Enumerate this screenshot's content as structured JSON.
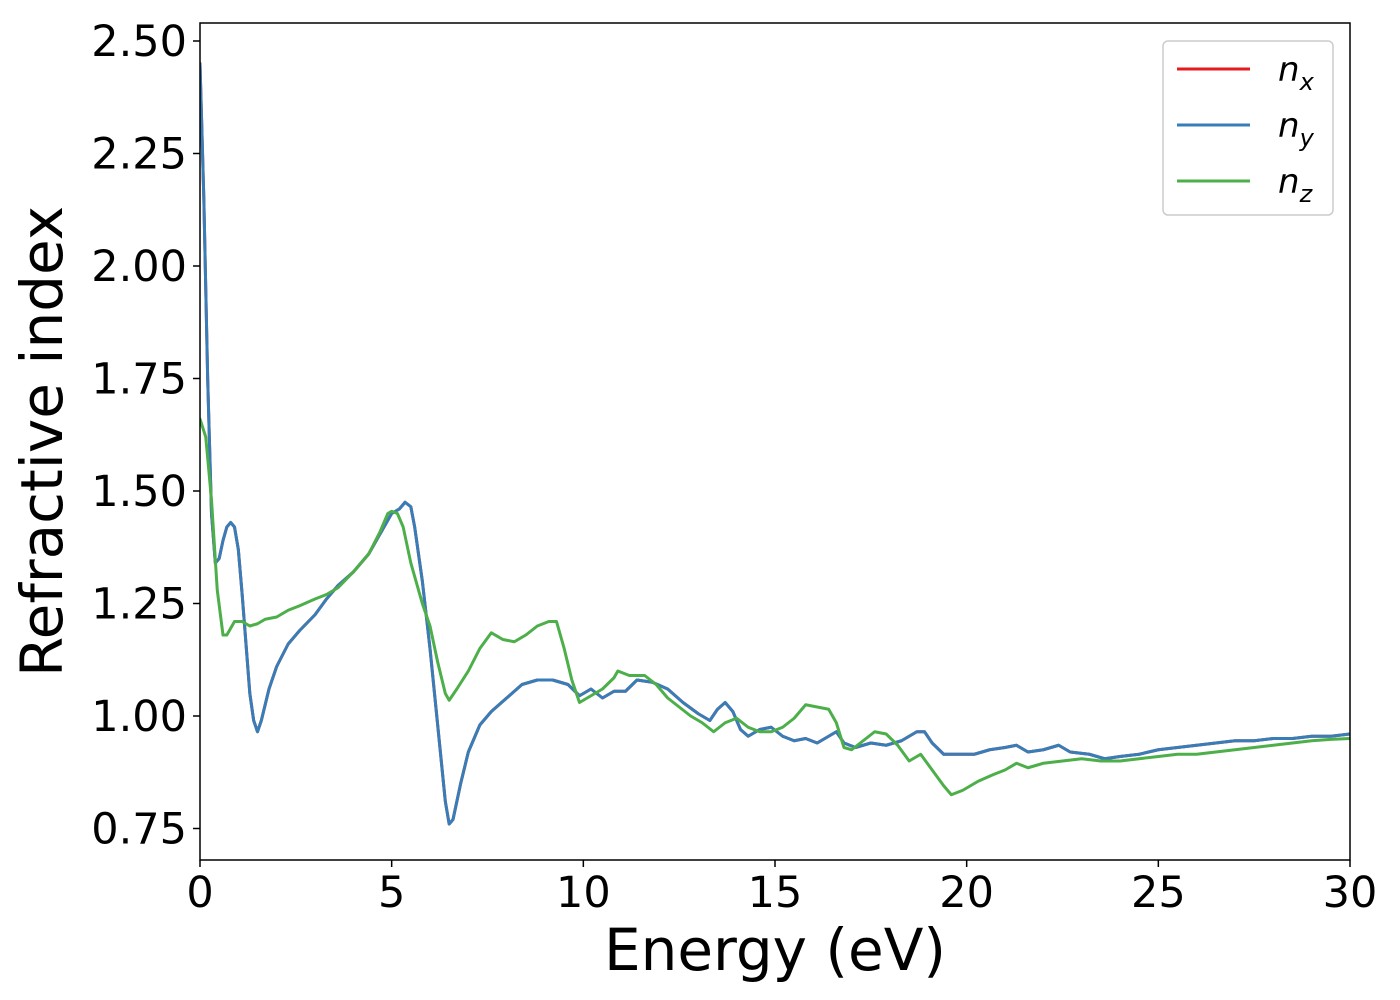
{
  "chart_data": {
    "type": "line",
    "xlabel": "Energy (eV)",
    "ylabel": "Refractive index",
    "xlim": [
      0,
      30
    ],
    "ylim": [
      0.68,
      2.54
    ],
    "grid": false,
    "legend_position": "top-right",
    "x_ticks": [
      0,
      5,
      10,
      15,
      20,
      25,
      30
    ],
    "x_tick_labels": [
      "0",
      "5",
      "10",
      "15",
      "20",
      "25",
      "30"
    ],
    "y_ticks": [
      0.75,
      1.0,
      1.25,
      1.5,
      1.75,
      2.0,
      2.25,
      2.5
    ],
    "y_tick_labels": [
      "0.75",
      "1.00",
      "1.25",
      "1.50",
      "1.75",
      "2.00",
      "2.25",
      "2.50"
    ],
    "series": [
      {
        "name": "n_x",
        "legend_base": "n",
        "legend_sub": "x",
        "color": "#e41a1c",
        "points": [
          [
            0.0,
            2.45
          ],
          [
            0.1,
            2.15
          ],
          [
            0.2,
            1.75
          ],
          [
            0.3,
            1.45
          ],
          [
            0.4,
            1.34
          ],
          [
            0.5,
            1.35
          ],
          [
            0.6,
            1.39
          ],
          [
            0.7,
            1.42
          ],
          [
            0.8,
            1.43
          ],
          [
            0.9,
            1.42
          ],
          [
            1.0,
            1.37
          ],
          [
            1.1,
            1.27
          ],
          [
            1.2,
            1.16
          ],
          [
            1.3,
            1.05
          ],
          [
            1.4,
            0.99
          ],
          [
            1.5,
            0.965
          ],
          [
            1.6,
            0.99
          ],
          [
            1.8,
            1.06
          ],
          [
            2.0,
            1.11
          ],
          [
            2.3,
            1.16
          ],
          [
            2.6,
            1.19
          ],
          [
            3.0,
            1.225
          ],
          [
            3.3,
            1.26
          ],
          [
            3.6,
            1.29
          ],
          [
            4.0,
            1.32
          ],
          [
            4.4,
            1.36
          ],
          [
            4.8,
            1.42
          ],
          [
            5.0,
            1.45
          ],
          [
            5.2,
            1.46
          ],
          [
            5.35,
            1.475
          ],
          [
            5.5,
            1.465
          ],
          [
            5.6,
            1.42
          ],
          [
            5.8,
            1.3
          ],
          [
            6.0,
            1.15
          ],
          [
            6.2,
            0.98
          ],
          [
            6.4,
            0.81
          ],
          [
            6.5,
            0.76
          ],
          [
            6.6,
            0.77
          ],
          [
            6.8,
            0.85
          ],
          [
            7.0,
            0.92
          ],
          [
            7.3,
            0.98
          ],
          [
            7.6,
            1.01
          ],
          [
            8.0,
            1.04
          ],
          [
            8.4,
            1.07
          ],
          [
            8.8,
            1.08
          ],
          [
            9.2,
            1.08
          ],
          [
            9.6,
            1.07
          ],
          [
            9.9,
            1.045
          ],
          [
            10.2,
            1.06
          ],
          [
            10.5,
            1.04
          ],
          [
            10.8,
            1.055
          ],
          [
            11.1,
            1.055
          ],
          [
            11.4,
            1.08
          ],
          [
            11.8,
            1.075
          ],
          [
            12.2,
            1.06
          ],
          [
            12.6,
            1.03
          ],
          [
            13.0,
            1.005
          ],
          [
            13.3,
            0.99
          ],
          [
            13.5,
            1.015
          ],
          [
            13.7,
            1.03
          ],
          [
            13.9,
            1.01
          ],
          [
            14.1,
            0.97
          ],
          [
            14.3,
            0.955
          ],
          [
            14.6,
            0.97
          ],
          [
            14.9,
            0.975
          ],
          [
            15.2,
            0.955
          ],
          [
            15.5,
            0.945
          ],
          [
            15.8,
            0.95
          ],
          [
            16.1,
            0.94
          ],
          [
            16.4,
            0.955
          ],
          [
            16.6,
            0.965
          ],
          [
            16.8,
            0.94
          ],
          [
            17.1,
            0.93
          ],
          [
            17.5,
            0.94
          ],
          [
            17.9,
            0.935
          ],
          [
            18.3,
            0.945
          ],
          [
            18.7,
            0.965
          ],
          [
            18.9,
            0.965
          ],
          [
            19.1,
            0.94
          ],
          [
            19.4,
            0.915
          ],
          [
            19.8,
            0.915
          ],
          [
            20.2,
            0.915
          ],
          [
            20.6,
            0.925
          ],
          [
            21.0,
            0.93
          ],
          [
            21.3,
            0.935
          ],
          [
            21.6,
            0.92
          ],
          [
            22.0,
            0.925
          ],
          [
            22.4,
            0.935
          ],
          [
            22.7,
            0.92
          ],
          [
            23.2,
            0.915
          ],
          [
            23.6,
            0.905
          ],
          [
            24.0,
            0.91
          ],
          [
            24.5,
            0.915
          ],
          [
            25.0,
            0.925
          ],
          [
            25.5,
            0.93
          ],
          [
            26.0,
            0.935
          ],
          [
            26.5,
            0.94
          ],
          [
            27.0,
            0.945
          ],
          [
            27.5,
            0.945
          ],
          [
            28.0,
            0.95
          ],
          [
            28.5,
            0.95
          ],
          [
            29.0,
            0.955
          ],
          [
            29.5,
            0.955
          ],
          [
            30.0,
            0.96
          ]
        ]
      },
      {
        "name": "n_y",
        "legend_base": "n",
        "legend_sub": "y",
        "color": "#377eb8",
        "points": [
          [
            0.0,
            2.45
          ],
          [
            0.1,
            2.15
          ],
          [
            0.2,
            1.75
          ],
          [
            0.3,
            1.45
          ],
          [
            0.4,
            1.34
          ],
          [
            0.5,
            1.35
          ],
          [
            0.6,
            1.39
          ],
          [
            0.7,
            1.42
          ],
          [
            0.8,
            1.43
          ],
          [
            0.9,
            1.42
          ],
          [
            1.0,
            1.37
          ],
          [
            1.1,
            1.27
          ],
          [
            1.2,
            1.16
          ],
          [
            1.3,
            1.05
          ],
          [
            1.4,
            0.99
          ],
          [
            1.5,
            0.965
          ],
          [
            1.6,
            0.99
          ],
          [
            1.8,
            1.06
          ],
          [
            2.0,
            1.11
          ],
          [
            2.3,
            1.16
          ],
          [
            2.6,
            1.19
          ],
          [
            3.0,
            1.225
          ],
          [
            3.3,
            1.26
          ],
          [
            3.6,
            1.29
          ],
          [
            4.0,
            1.32
          ],
          [
            4.4,
            1.36
          ],
          [
            4.8,
            1.42
          ],
          [
            5.0,
            1.45
          ],
          [
            5.2,
            1.46
          ],
          [
            5.35,
            1.475
          ],
          [
            5.5,
            1.465
          ],
          [
            5.6,
            1.42
          ],
          [
            5.8,
            1.3
          ],
          [
            6.0,
            1.15
          ],
          [
            6.2,
            0.98
          ],
          [
            6.4,
            0.81
          ],
          [
            6.5,
            0.76
          ],
          [
            6.6,
            0.77
          ],
          [
            6.8,
            0.85
          ],
          [
            7.0,
            0.92
          ],
          [
            7.3,
            0.98
          ],
          [
            7.6,
            1.01
          ],
          [
            8.0,
            1.04
          ],
          [
            8.4,
            1.07
          ],
          [
            8.8,
            1.08
          ],
          [
            9.2,
            1.08
          ],
          [
            9.6,
            1.07
          ],
          [
            9.9,
            1.045
          ],
          [
            10.2,
            1.06
          ],
          [
            10.5,
            1.04
          ],
          [
            10.8,
            1.055
          ],
          [
            11.1,
            1.055
          ],
          [
            11.4,
            1.08
          ],
          [
            11.8,
            1.075
          ],
          [
            12.2,
            1.06
          ],
          [
            12.6,
            1.03
          ],
          [
            13.0,
            1.005
          ],
          [
            13.3,
            0.99
          ],
          [
            13.5,
            1.015
          ],
          [
            13.7,
            1.03
          ],
          [
            13.9,
            1.01
          ],
          [
            14.1,
            0.97
          ],
          [
            14.3,
            0.955
          ],
          [
            14.6,
            0.97
          ],
          [
            14.9,
            0.975
          ],
          [
            15.2,
            0.955
          ],
          [
            15.5,
            0.945
          ],
          [
            15.8,
            0.95
          ],
          [
            16.1,
            0.94
          ],
          [
            16.4,
            0.955
          ],
          [
            16.6,
            0.965
          ],
          [
            16.8,
            0.94
          ],
          [
            17.1,
            0.93
          ],
          [
            17.5,
            0.94
          ],
          [
            17.9,
            0.935
          ],
          [
            18.3,
            0.945
          ],
          [
            18.7,
            0.965
          ],
          [
            18.9,
            0.965
          ],
          [
            19.1,
            0.94
          ],
          [
            19.4,
            0.915
          ],
          [
            19.8,
            0.915
          ],
          [
            20.2,
            0.915
          ],
          [
            20.6,
            0.925
          ],
          [
            21.0,
            0.93
          ],
          [
            21.3,
            0.935
          ],
          [
            21.6,
            0.92
          ],
          [
            22.0,
            0.925
          ],
          [
            22.4,
            0.935
          ],
          [
            22.7,
            0.92
          ],
          [
            23.2,
            0.915
          ],
          [
            23.6,
            0.905
          ],
          [
            24.0,
            0.91
          ],
          [
            24.5,
            0.915
          ],
          [
            25.0,
            0.925
          ],
          [
            25.5,
            0.93
          ],
          [
            26.0,
            0.935
          ],
          [
            26.5,
            0.94
          ],
          [
            27.0,
            0.945
          ],
          [
            27.5,
            0.945
          ],
          [
            28.0,
            0.95
          ],
          [
            28.5,
            0.95
          ],
          [
            29.0,
            0.955
          ],
          [
            29.5,
            0.955
          ],
          [
            30.0,
            0.96
          ]
        ]
      },
      {
        "name": "n_z",
        "legend_base": "n",
        "legend_sub": "z",
        "color": "#4daf4a",
        "points": [
          [
            0.0,
            1.66
          ],
          [
            0.15,
            1.62
          ],
          [
            0.3,
            1.48
          ],
          [
            0.45,
            1.28
          ],
          [
            0.6,
            1.18
          ],
          [
            0.7,
            1.18
          ],
          [
            0.9,
            1.21
          ],
          [
            1.1,
            1.21
          ],
          [
            1.3,
            1.2
          ],
          [
            1.5,
            1.205
          ],
          [
            1.7,
            1.215
          ],
          [
            2.0,
            1.22
          ],
          [
            2.3,
            1.235
          ],
          [
            2.6,
            1.245
          ],
          [
            3.0,
            1.26
          ],
          [
            3.3,
            1.27
          ],
          [
            3.6,
            1.285
          ],
          [
            4.0,
            1.32
          ],
          [
            4.4,
            1.36
          ],
          [
            4.7,
            1.41
          ],
          [
            4.9,
            1.45
          ],
          [
            5.0,
            1.455
          ],
          [
            5.15,
            1.45
          ],
          [
            5.3,
            1.42
          ],
          [
            5.5,
            1.34
          ],
          [
            5.8,
            1.25
          ],
          [
            6.0,
            1.2
          ],
          [
            6.2,
            1.12
          ],
          [
            6.4,
            1.05
          ],
          [
            6.5,
            1.035
          ],
          [
            6.7,
            1.06
          ],
          [
            7.0,
            1.1
          ],
          [
            7.3,
            1.15
          ],
          [
            7.6,
            1.185
          ],
          [
            7.9,
            1.17
          ],
          [
            8.2,
            1.165
          ],
          [
            8.5,
            1.18
          ],
          [
            8.8,
            1.2
          ],
          [
            9.1,
            1.21
          ],
          [
            9.3,
            1.21
          ],
          [
            9.5,
            1.15
          ],
          [
            9.7,
            1.08
          ],
          [
            9.9,
            1.03
          ],
          [
            10.2,
            1.045
          ],
          [
            10.5,
            1.06
          ],
          [
            10.8,
            1.085
          ],
          [
            10.9,
            1.1
          ],
          [
            11.2,
            1.09
          ],
          [
            11.6,
            1.09
          ],
          [
            11.9,
            1.07
          ],
          [
            12.2,
            1.04
          ],
          [
            12.5,
            1.02
          ],
          [
            12.8,
            1.0
          ],
          [
            13.1,
            0.985
          ],
          [
            13.4,
            0.965
          ],
          [
            13.7,
            0.985
          ],
          [
            14.0,
            0.995
          ],
          [
            14.3,
            0.975
          ],
          [
            14.6,
            0.965
          ],
          [
            14.9,
            0.965
          ],
          [
            15.2,
            0.975
          ],
          [
            15.5,
            0.995
          ],
          [
            15.8,
            1.025
          ],
          [
            16.1,
            1.02
          ],
          [
            16.4,
            1.015
          ],
          [
            16.6,
            0.985
          ],
          [
            16.8,
            0.93
          ],
          [
            17.0,
            0.925
          ],
          [
            17.3,
            0.945
          ],
          [
            17.6,
            0.965
          ],
          [
            17.9,
            0.96
          ],
          [
            18.2,
            0.935
          ],
          [
            18.5,
            0.9
          ],
          [
            18.8,
            0.915
          ],
          [
            19.1,
            0.88
          ],
          [
            19.4,
            0.845
          ],
          [
            19.6,
            0.825
          ],
          [
            19.9,
            0.835
          ],
          [
            20.3,
            0.855
          ],
          [
            20.7,
            0.87
          ],
          [
            21.0,
            0.88
          ],
          [
            21.3,
            0.895
          ],
          [
            21.6,
            0.885
          ],
          [
            22.0,
            0.895
          ],
          [
            22.5,
            0.9
          ],
          [
            23.0,
            0.905
          ],
          [
            23.5,
            0.9
          ],
          [
            24.0,
            0.9
          ],
          [
            24.5,
            0.905
          ],
          [
            25.0,
            0.91
          ],
          [
            25.5,
            0.915
          ],
          [
            26.0,
            0.915
          ],
          [
            26.5,
            0.92
          ],
          [
            27.0,
            0.925
          ],
          [
            27.5,
            0.93
          ],
          [
            28.0,
            0.935
          ],
          [
            28.5,
            0.94
          ],
          [
            29.0,
            0.945
          ],
          [
            29.5,
            0.948
          ],
          [
            30.0,
            0.95
          ]
        ]
      }
    ]
  }
}
